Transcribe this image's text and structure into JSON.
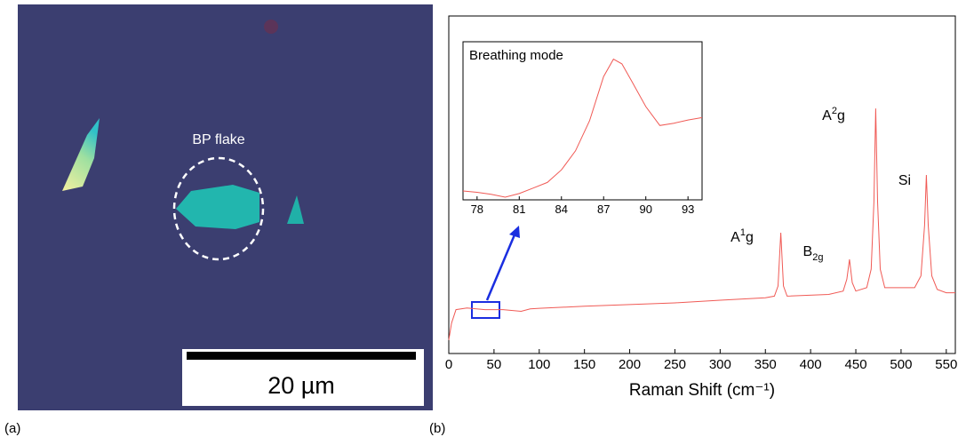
{
  "panel_a": {
    "label": "(a)",
    "annotation": "BP flake",
    "scale_bar": "20 µm"
  },
  "panel_b": {
    "label": "(b)"
  },
  "chart_data": [
    {
      "type": "line",
      "x_label": "Raman Shift (cm⁻¹)",
      "color": "#f05a55",
      "xlim": [
        0,
        560
      ],
      "xticks": [
        0,
        50,
        100,
        150,
        200,
        250,
        300,
        350,
        400,
        450,
        500,
        550
      ],
      "ylim": [
        0,
        100
      ],
      "x": [
        0,
        3,
        8,
        20,
        40,
        60,
        80,
        90,
        100,
        150,
        200,
        250,
        300,
        350,
        360,
        364,
        367,
        370,
        374,
        420,
        436,
        440,
        443,
        446,
        450,
        462,
        467,
        470,
        472,
        474,
        477,
        482,
        515,
        522,
        526,
        528,
        530,
        534,
        540,
        550,
        560
      ],
      "values": [
        4,
        9,
        13,
        13.5,
        13,
        13,
        12.5,
        13.2,
        13.4,
        14,
        14.5,
        15,
        15.8,
        16.5,
        17,
        20,
        35.8,
        20,
        17,
        17.5,
        18.5,
        22,
        27.9,
        21,
        18.5,
        19.5,
        25,
        45,
        72.6,
        45,
        25,
        19.5,
        19.5,
        23,
        38,
        52.9,
        38,
        23,
        19,
        18,
        18
      ],
      "annotations": [
        {
          "base": "A",
          "sup": "1",
          "tail": "g"
        },
        {
          "base": "B",
          "sub": "2g"
        },
        {
          "base": "A",
          "sup": "2",
          "tail": "g"
        },
        {
          "base": "Si"
        }
      ]
    },
    {
      "type": "line",
      "title": "Breathing  mode",
      "color": "#f05a55",
      "xlim": [
        77,
        94
      ],
      "xticks": [
        78,
        81,
        84,
        87,
        90,
        93
      ],
      "ylim": [
        0,
        100
      ],
      "x": [
        77,
        78,
        79,
        80,
        81,
        82,
        83,
        84,
        85,
        86,
        87,
        87.7,
        88.3,
        89,
        90,
        91,
        92,
        93,
        94
      ],
      "values": [
        5.6,
        4.8,
        3.5,
        1.7,
        4,
        7.5,
        11,
        19,
        31,
        50,
        78,
        89,
        86,
        75,
        59,
        47,
        48.5,
        50.5,
        52
      ]
    }
  ]
}
